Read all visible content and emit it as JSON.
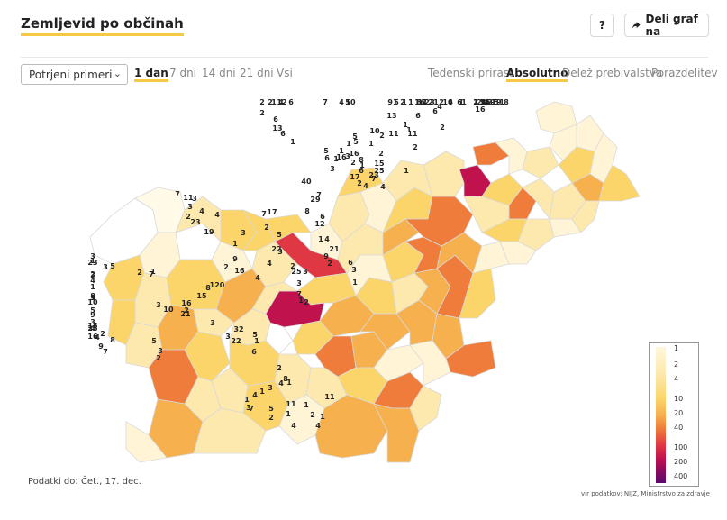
{
  "header": {
    "title": "Zemljevid po občinah",
    "help_label": "?",
    "share_label": "Deli graf na"
  },
  "filters": {
    "metric_select_value": "Potrjeni primeri",
    "time_tabs": [
      "1 dan",
      "7 dni",
      "14 dni",
      "21 dni",
      "Vsi"
    ],
    "time_active": "1 dan",
    "mode_tabs": [
      "Tedenski prirast",
      "Absolutno",
      "Delež prebivalstva",
      "Porazdelitev"
    ],
    "mode_active": "Absolutno"
  },
  "footer": {
    "data_date": "Podatki do: Čet., 17. dec.",
    "source": "vir podatkov: NIJZ, Ministrstvo za zdravje"
  },
  "legend": {
    "labels": [
      "1",
      "2",
      "4",
      "10",
      "20",
      "40",
      "100",
      "200",
      "400"
    ],
    "colors": [
      "#fff7dc",
      "#fde9ad",
      "#fbd56a",
      "#f6b04d",
      "#ef7c3a",
      "#e03842",
      "#c0134e",
      "#8a0a5e",
      "#5a0a6b"
    ]
  },
  "map_data": {
    "region": "Slovenia",
    "unit": "potrjeni primeri po občinah",
    "colors": {
      "none": "#ffffff",
      "border": "#d9d9d9"
    },
    "labels": [
      "5",
      "1",
      "3",
      "2",
      "1",
      "16",
      "3",
      "2",
      "10",
      "14",
      "1",
      "2",
      "8",
      "4",
      "1",
      "1",
      "5",
      "6",
      "2",
      "1",
      "2",
      "1",
      "6",
      "2",
      "1",
      "91",
      "11",
      "1",
      "6",
      "5",
      "6",
      "4",
      "2",
      "1",
      "6",
      "2",
      "16",
      "13",
      "11",
      "10",
      "2",
      "5",
      "1",
      "4",
      "7",
      "5",
      "10",
      "6",
      "12",
      "4",
      "2",
      "1",
      "2",
      "2",
      "6",
      "13",
      "6",
      "23",
      "25",
      "15",
      "1",
      "1",
      "11",
      "2",
      "1",
      "4",
      "7",
      "2",
      "4",
      "2",
      "1",
      "17",
      "5",
      "8",
      "6",
      "2",
      "3",
      "16",
      "1",
      "16",
      "1",
      "1",
      "1",
      "5",
      "6",
      "3",
      "40",
      "29",
      "8",
      "7",
      "6",
      "12",
      "1",
      "4",
      "21",
      "9",
      "2",
      "6",
      "3",
      "1",
      "3",
      "3",
      "1",
      "2",
      "7",
      "2",
      "22",
      "7",
      "17",
      "2",
      "5",
      "25",
      "3",
      "4",
      "4",
      "16",
      "19",
      "2",
      "23",
      "3",
      "11",
      "7",
      "3",
      "4",
      "4",
      "3",
      "1",
      "9",
      "2",
      "120",
      "8",
      "15",
      "16",
      "2",
      "21",
      "10",
      "3",
      "1",
      "2",
      "7",
      "5",
      "3",
      "4",
      "3",
      "2",
      "1",
      "3",
      "23",
      "1",
      "8",
      "5",
      "1",
      "10",
      "5",
      "9",
      "3",
      "4",
      "25",
      "15",
      "2",
      "16",
      "8",
      "9",
      "7",
      "4",
      "5",
      "3",
      "2",
      "3",
      "32",
      "3",
      "22",
      "5",
      "1",
      "6",
      "2",
      "1",
      "8",
      "4",
      "3",
      "1",
      "4",
      "1",
      "3",
      "7",
      "5",
      "2",
      "11",
      "1",
      "2",
      "4",
      "4",
      "1",
      "11",
      "1",
      "19",
      "3",
      "19"
    ]
  }
}
